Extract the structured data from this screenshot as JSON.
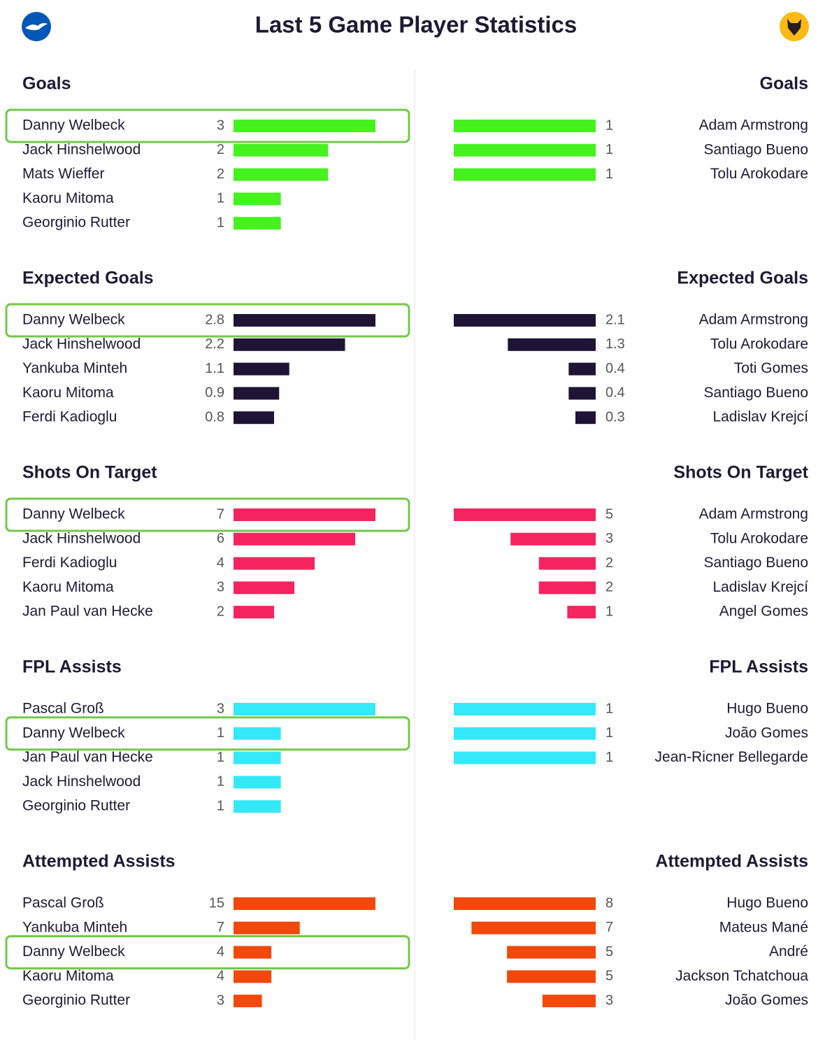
{
  "title": "Last 5 Game Player Statistics",
  "chart_data": [
    {
      "type": "bar",
      "side": "left",
      "title": "Goals",
      "color": "#45f21e",
      "highlight": [
        0
      ],
      "categories": [
        "Danny Welbeck",
        "Jack Hinshelwood",
        "Mats Wieffer",
        "Kaoru Mitoma",
        "Georginio Rutter"
      ],
      "values": [
        3,
        2,
        2,
        1,
        1
      ]
    },
    {
      "type": "bar",
      "side": "right",
      "title": "Goals",
      "color": "#45f21e",
      "categories": [
        "Adam Armstrong",
        "Santiago Bueno",
        "Tolu Arokodare"
      ],
      "values": [
        1,
        1,
        1
      ]
    },
    {
      "type": "bar",
      "side": "left",
      "title": "Expected Goals",
      "color": "#1f1436",
      "highlight": [
        0
      ],
      "categories": [
        "Danny Welbeck",
        "Jack Hinshelwood",
        "Yankuba Minteh",
        "Kaoru Mitoma",
        "Ferdi Kadioglu"
      ],
      "values": [
        2.8,
        2.2,
        1.1,
        0.9,
        0.8
      ]
    },
    {
      "type": "bar",
      "side": "right",
      "title": "Expected Goals",
      "color": "#1f1436",
      "categories": [
        "Adam Armstrong",
        "Tolu Arokodare",
        "Toti Gomes",
        "Santiago Bueno",
        "Ladislav Krejcí"
      ],
      "values": [
        2.1,
        1.3,
        0.4,
        0.4,
        0.3
      ]
    },
    {
      "type": "bar",
      "side": "left",
      "title": "Shots On Target",
      "color": "#f5245e",
      "highlight": [
        0
      ],
      "categories": [
        "Danny Welbeck",
        "Jack Hinshelwood",
        "Ferdi Kadioglu",
        "Kaoru Mitoma",
        "Jan Paul van Hecke"
      ],
      "values": [
        7,
        6,
        4,
        3,
        2
      ]
    },
    {
      "type": "bar",
      "side": "right",
      "title": "Shots On Target",
      "color": "#f5245e",
      "categories": [
        "Adam Armstrong",
        "Tolu Arokodare",
        "Santiago Bueno",
        "Ladislav Krejcí",
        "Angel Gomes"
      ],
      "values": [
        5,
        3,
        2,
        2,
        1
      ]
    },
    {
      "type": "bar",
      "side": "left",
      "title": "FPL Assists",
      "color": "#33e9f7",
      "highlight": [
        1
      ],
      "categories": [
        "Pascal Groß",
        "Danny Welbeck",
        "Jan Paul van Hecke",
        "Jack Hinshelwood",
        "Georginio Rutter"
      ],
      "values": [
        3,
        1,
        1,
        1,
        1
      ]
    },
    {
      "type": "bar",
      "side": "right",
      "title": "FPL Assists",
      "color": "#33e9f7",
      "categories": [
        "Hugo Bueno",
        "João Gomes",
        "Jean-Ricner Bellegarde"
      ],
      "values": [
        1,
        1,
        1
      ]
    },
    {
      "type": "bar",
      "side": "left",
      "title": "Attempted Assists",
      "color": "#f2480b",
      "highlight": [
        2
      ],
      "categories": [
        "Pascal Groß",
        "Yankuba Minteh",
        "Danny Welbeck",
        "Kaoru Mitoma",
        "Georginio Rutter"
      ],
      "values": [
        15,
        7,
        4,
        4,
        3
      ]
    },
    {
      "type": "bar",
      "side": "right",
      "title": "Attempted Assists",
      "color": "#f2480b",
      "categories": [
        "Hugo Bueno",
        "Mateus Mané",
        "André",
        "Jackson Tchatchoua",
        "João Gomes"
      ],
      "values": [
        8,
        7,
        5,
        5,
        3
      ]
    }
  ]
}
